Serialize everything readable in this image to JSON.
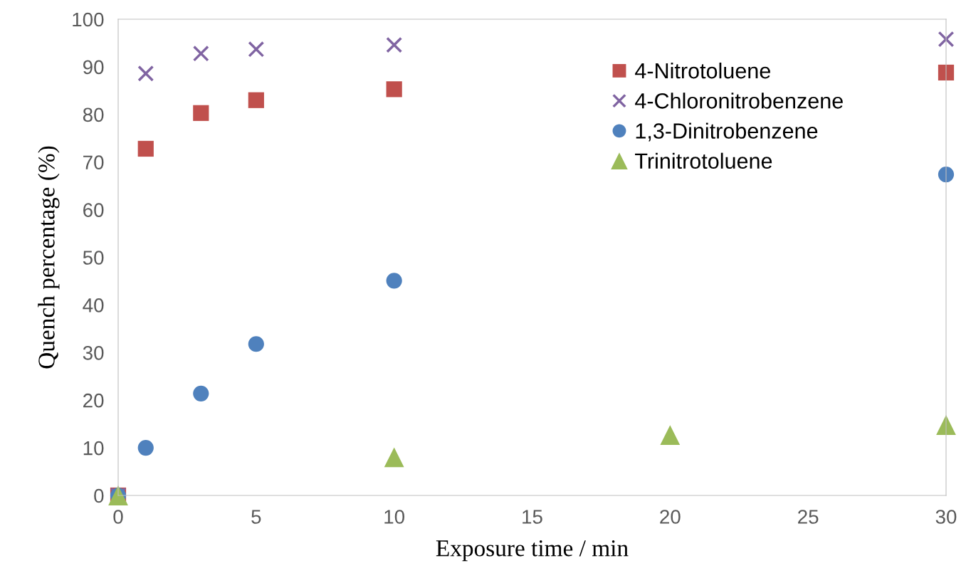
{
  "chart_data": {
    "type": "scatter",
    "xlabel": "Exposure time / min",
    "ylabel": "Quench percentage (%)",
    "xlim": [
      0,
      30
    ],
    "xticks": [
      0,
      5,
      10,
      15,
      20,
      25,
      30
    ],
    "ylim": [
      0,
      100
    ],
    "yticks": [
      0,
      10,
      20,
      30,
      40,
      50,
      60,
      70,
      80,
      90,
      100
    ],
    "grid": false,
    "legend": "top right",
    "series": [
      {
        "name": "4-Nitrotoluene",
        "color": "#c0504d",
        "marker": "square",
        "x": [
          0,
          1,
          3,
          5,
          10,
          30
        ],
        "values": [
          0,
          72.8,
          80.3,
          83.0,
          85.3,
          88.8
        ]
      },
      {
        "name": "4-Chloronitrobenzene",
        "color": "#8064a2",
        "marker": "cross",
        "x": [
          0,
          1,
          3,
          5,
          10,
          30
        ],
        "values": [
          0,
          88.6,
          92.8,
          93.7,
          94.6,
          95.8
        ]
      },
      {
        "name": "1,3-Dinitrobenzene",
        "color": "#4f81bd",
        "marker": "circle",
        "x": [
          0,
          1,
          3,
          5,
          10,
          30
        ],
        "values": [
          0,
          10.0,
          21.4,
          31.8,
          45.1,
          67.4
        ]
      },
      {
        "name": "Trinitrotoluene",
        "color": "#9bbb59",
        "marker": "triangle",
        "x": [
          0,
          10,
          20,
          30
        ],
        "values": [
          0,
          8.0,
          12.7,
          14.8
        ]
      }
    ]
  }
}
